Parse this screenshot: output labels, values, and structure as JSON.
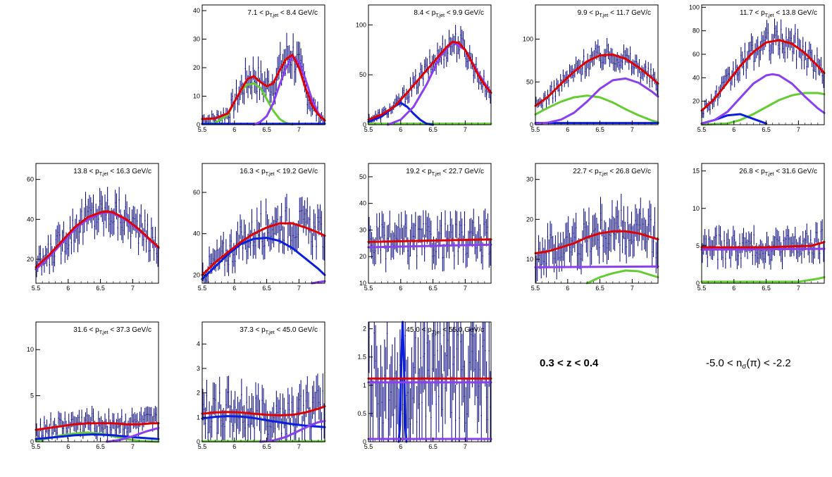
{
  "labels": {
    "z_range": "0.3 < z < 0.4",
    "nsigma_pre": "-5.0 < n",
    "nsigma_sub": "σ",
    "nsigma_post": "(π) < -2.2"
  },
  "colors": {
    "data": "#000080",
    "total": "#e00000",
    "pion": "#8a3ff0",
    "kaon": "#0a1ee0",
    "proton": "#66cc33"
  },
  "chart_data": [
    {
      "type": "scatter",
      "title_pre": "7.1 < p",
      "title_sub": "T,jet",
      "title_post": " < 8.4 GeV/c",
      "xlim": [
        5.5,
        7.4
      ],
      "ylim": [
        0,
        42
      ],
      "xticks": [
        "5.5",
        "6",
        "6.5",
        "7"
      ],
      "yticks": [
        0,
        10,
        20,
        30,
        40
      ],
      "series": [
        {
          "key": "total",
          "x": [
            5.5,
            5.7,
            5.9,
            6.1,
            6.2,
            6.3,
            6.4,
            6.5,
            6.6,
            6.7,
            6.8,
            6.9,
            7.0,
            7.1,
            7.2,
            7.3,
            7.4
          ],
          "y": [
            2,
            2.2,
            4,
            12,
            16,
            17,
            15,
            13.5,
            14.5,
            19,
            23,
            24.5,
            20,
            13,
            7,
            3.5,
            1.5
          ]
        },
        {
          "key": "proton",
          "x": [
            5.5,
            5.7,
            5.9,
            6.0,
            6.1,
            6.2,
            6.3,
            6.4,
            6.5,
            6.6,
            6.7,
            6.8,
            6.9
          ],
          "y": [
            0.2,
            0.6,
            3.5,
            8,
            12,
            14,
            14.5,
            13,
            9,
            5,
            2,
            0.6,
            0.1
          ]
        },
        {
          "key": "pion",
          "x": [
            6.3,
            6.4,
            6.5,
            6.6,
            6.7,
            6.8,
            6.9,
            7.0,
            7.1,
            7.2,
            7.3,
            7.4
          ],
          "y": [
            0,
            1,
            3,
            7.5,
            14,
            20,
            24,
            22,
            16,
            9,
            4,
            1.5
          ]
        },
        {
          "key": "kaon",
          "x": [
            5.5,
            7.4
          ],
          "y": [
            0.3,
            0.3
          ]
        }
      ]
    },
    {
      "type": "scatter",
      "title_pre": "8.4 < p",
      "title_sub": "T,jet",
      "title_post": " < 9.9 GeV/c",
      "xlim": [
        5.5,
        7.4
      ],
      "ylim": [
        0,
        120
      ],
      "xticks": [
        "5.5",
        "6",
        "6.5",
        "7"
      ],
      "yticks": [
        0,
        50,
        100
      ],
      "series": [
        {
          "key": "total",
          "x": [
            5.5,
            5.7,
            5.9,
            6.1,
            6.3,
            6.5,
            6.7,
            6.8,
            6.9,
            7.0,
            7.1,
            7.2,
            7.3,
            7.4
          ],
          "y": [
            5,
            10,
            18,
            32,
            47,
            62,
            77,
            83,
            82,
            75,
            63,
            50,
            40,
            32
          ]
        },
        {
          "key": "pion",
          "x": [
            5.8,
            6.0,
            6.2,
            6.4,
            6.6,
            6.8,
            7.0,
            7.2,
            7.4
          ],
          "y": [
            0,
            5,
            18,
            40,
            67,
            83,
            75,
            52,
            32
          ]
        },
        {
          "key": "kaon",
          "x": [
            5.5,
            5.7,
            5.8,
            5.9,
            6.0,
            6.1,
            6.2,
            6.3,
            6.4,
            6.5
          ],
          "y": [
            3,
            8,
            13,
            18,
            22,
            18,
            11,
            5,
            1,
            0
          ]
        },
        {
          "key": "proton",
          "x": [
            5.5,
            7.4
          ],
          "y": [
            1,
            1
          ]
        }
      ]
    },
    {
      "type": "scatter",
      "title_pre": "9.9 < p",
      "title_sub": "T,jet",
      "title_post": " < 11.7 GeV/c",
      "xlim": [
        5.5,
        7.4
      ],
      "ylim": [
        0,
        140
      ],
      "xticks": [
        "5.5",
        "6",
        "6.5",
        "7"
      ],
      "yticks": [
        0,
        50,
        100
      ],
      "series": [
        {
          "key": "total",
          "x": [
            5.5,
            5.7,
            5.9,
            6.1,
            6.3,
            6.5,
            6.7,
            6.9,
            7.1,
            7.3,
            7.4
          ],
          "y": [
            22,
            33,
            48,
            62,
            74,
            81,
            82,
            77,
            67,
            55,
            48
          ]
        },
        {
          "key": "pion",
          "x": [
            5.5,
            5.7,
            5.9,
            6.1,
            6.3,
            6.5,
            6.7,
            6.9,
            7.1,
            7.3,
            7.4
          ],
          "y": [
            1,
            2.5,
            6,
            14,
            27,
            42,
            52,
            54,
            49,
            39,
            33
          ]
        },
        {
          "key": "proton",
          "x": [
            5.5,
            5.7,
            5.9,
            6.1,
            6.3,
            6.5,
            6.7,
            6.9,
            7.1,
            7.3,
            7.4
          ],
          "y": [
            12,
            20,
            27,
            32,
            34,
            32,
            26,
            18,
            11,
            5,
            3
          ]
        },
        {
          "key": "kaon",
          "x": [
            5.5,
            7.4
          ],
          "y": [
            2,
            2
          ]
        }
      ]
    },
    {
      "type": "scatter",
      "title_pre": "11.7 < p",
      "title_sub": "T,jet",
      "title_post": " < 13.8 GeV/c",
      "xlim": [
        5.5,
        7.4
      ],
      "ylim": [
        0,
        102
      ],
      "xticks": [
        "5.5",
        "6",
        "6.5",
        "7"
      ],
      "yticks": [
        20,
        40,
        60,
        80,
        100
      ],
      "series": [
        {
          "key": "total",
          "x": [
            5.5,
            5.7,
            5.9,
            6.1,
            6.3,
            6.5,
            6.7,
            6.9,
            7.1,
            7.3,
            7.4
          ],
          "y": [
            12,
            22,
            36,
            50,
            62,
            70,
            72,
            69,
            61,
            50,
            44
          ]
        },
        {
          "key": "pion",
          "x": [
            5.5,
            5.7,
            5.9,
            6.1,
            6.3,
            6.5,
            6.6,
            6.7,
            6.9,
            7.1,
            7.3,
            7.4
          ],
          "y": [
            1,
            4,
            11,
            23,
            35,
            42,
            43,
            42,
            35,
            24,
            14,
            10
          ]
        },
        {
          "key": "proton",
          "x": [
            5.5,
            5.9,
            6.1,
            6.3,
            6.5,
            6.7,
            6.9,
            7.1,
            7.3,
            7.4
          ],
          "y": [
            0,
            1,
            4,
            9,
            15,
            21,
            25,
            27,
            27,
            26
          ]
        },
        {
          "key": "kaon",
          "x": [
            5.5,
            5.7,
            5.9,
            6.1,
            6.3,
            6.5
          ],
          "y": [
            1,
            4,
            8,
            9,
            5,
            1
          ]
        }
      ]
    },
    {
      "type": "scatter",
      "title_pre": "13.8 < p",
      "title_sub": "T,jet",
      "title_post": " < 16.3 GeV/c",
      "xlim": [
        5.5,
        7.4
      ],
      "ylim": [
        8,
        68
      ],
      "xticks": [
        "5.5",
        "6",
        "6.5",
        "7"
      ],
      "yticks": [
        20,
        40,
        60
      ],
      "series": [
        {
          "key": "total",
          "x": [
            5.5,
            5.7,
            5.9,
            6.1,
            6.3,
            6.5,
            6.6,
            6.7,
            6.9,
            7.1,
            7.3,
            7.4
          ],
          "y": [
            16,
            22,
            29,
            36,
            41,
            43.5,
            44,
            43.5,
            40,
            35,
            29,
            26
          ]
        },
        {
          "key": "pion",
          "x": [
            5.5,
            5.7,
            5.9,
            6.1,
            6.3,
            6.5,
            6.6,
            6.7,
            6.9,
            7.1,
            7.3,
            7.4
          ],
          "y": [
            15,
            21,
            28,
            35,
            40,
            43,
            43.5,
            43,
            39.5,
            34.5,
            28.5,
            25.5
          ]
        }
      ]
    },
    {
      "type": "scatter",
      "title_pre": "16.3 < p",
      "title_sub": "T,jet",
      "title_post": " < 19.2 GeV/c",
      "xlim": [
        5.5,
        7.4
      ],
      "ylim": [
        16,
        74
      ],
      "xticks": [
        "5.5",
        "6",
        "6.5",
        "7"
      ],
      "yticks": [
        20,
        40,
        60
      ],
      "series": [
        {
          "key": "total",
          "x": [
            5.5,
            5.7,
            5.9,
            6.1,
            6.3,
            6.5,
            6.7,
            6.9,
            7.1,
            7.3,
            7.4
          ],
          "y": [
            20,
            26,
            31,
            36,
            40,
            43,
            45,
            45,
            43,
            40.5,
            39
          ]
        },
        {
          "key": "kaon",
          "x": [
            5.5,
            5.7,
            5.9,
            6.1,
            6.3,
            6.5,
            6.7,
            6.9,
            7.1,
            7.3,
            7.4
          ],
          "y": [
            18,
            24,
            30,
            35,
            37.5,
            38,
            36.5,
            33,
            28,
            23,
            20
          ]
        },
        {
          "key": "pion",
          "x": [
            7.2,
            7.3,
            7.4
          ],
          "y": [
            16,
            16.5,
            17
          ]
        }
      ]
    },
    {
      "type": "scatter",
      "title_pre": "19.2 < p",
      "title_sub": "T,jet",
      "title_post": " < 22.7 GeV/c",
      "xlim": [
        5.5,
        7.4
      ],
      "ylim": [
        10,
        55
      ],
      "xticks": [
        "5.5",
        "6",
        "6.5",
        "7"
      ],
      "yticks": [
        10,
        20,
        30,
        40,
        50
      ],
      "series": [
        {
          "key": "total",
          "x": [
            5.5,
            7.4
          ],
          "y": [
            25.5,
            26.5
          ]
        },
        {
          "key": "pion",
          "x": [
            5.5,
            7.4
          ],
          "y": [
            23.5,
            24.5
          ]
        }
      ]
    },
    {
      "type": "scatter",
      "title_pre": "22.7 < p",
      "title_sub": "T,jet",
      "title_post": " < 26.8 GeV/c",
      "xlim": [
        5.5,
        7.4
      ],
      "ylim": [
        4,
        34
      ],
      "xticks": [
        "5.5",
        "6",
        "6.5",
        "7"
      ],
      "yticks": [
        10,
        20,
        30
      ],
      "series": [
        {
          "key": "total",
          "x": [
            5.5,
            5.7,
            5.9,
            6.1,
            6.3,
            6.5,
            6.7,
            6.9,
            7.1,
            7.3,
            7.4
          ],
          "y": [
            11.5,
            12,
            13,
            14,
            15.5,
            16.5,
            17,
            17,
            16.5,
            15.5,
            15
          ]
        },
        {
          "key": "pion",
          "x": [
            5.5,
            7.4
          ],
          "y": [
            8,
            8.2
          ]
        },
        {
          "key": "proton",
          "x": [
            6.3,
            6.5,
            6.7,
            6.9,
            7.1,
            7.3,
            7.4
          ],
          "y": [
            4,
            5.5,
            6.5,
            7.2,
            7,
            6,
            5.5
          ]
        }
      ]
    },
    {
      "type": "scatter",
      "title_pre": "26.8 < p",
      "title_sub": "T,jet",
      "title_post": " < 31.6 GeV/c",
      "xlim": [
        5.5,
        7.4
      ],
      "ylim": [
        0,
        16
      ],
      "xticks": [
        "5.5",
        "6",
        "6.5",
        "7"
      ],
      "yticks": [
        0,
        5,
        10,
        15
      ],
      "series": [
        {
          "key": "total",
          "x": [
            5.5,
            6.5,
            7.2,
            7.4
          ],
          "y": [
            4.8,
            4.8,
            5,
            5.5
          ]
        },
        {
          "key": "pion",
          "x": [
            5.5,
            7.4
          ],
          "y": [
            4.5,
            4.6
          ]
        },
        {
          "key": "proton",
          "x": [
            5.5,
            7.0,
            7.3,
            7.4
          ],
          "y": [
            0.2,
            0.2,
            0.6,
            0.8
          ]
        }
      ]
    },
    {
      "type": "scatter",
      "title_pre": "31.6 < p",
      "title_sub": "T,jet",
      "title_post": " < 37.3 GeV/c",
      "xlim": [
        5.5,
        7.4
      ],
      "ylim": [
        0,
        13
      ],
      "xticks": [
        "5.5",
        "6",
        "6.5",
        "7"
      ],
      "yticks": [
        0,
        5,
        10
      ],
      "series": [
        {
          "key": "total",
          "x": [
            5.5,
            5.7,
            5.9,
            6.1,
            6.3,
            6.5,
            6.7,
            6.9,
            7.1,
            7.3,
            7.4
          ],
          "y": [
            1.3,
            1.5,
            1.7,
            1.9,
            2,
            2,
            2,
            1.9,
            1.9,
            2,
            2
          ]
        },
        {
          "key": "proton",
          "x": [
            5.5,
            5.7,
            5.9,
            6.1,
            6.3,
            6.5,
            6.7,
            6.9,
            7.1,
            7.4
          ],
          "y": [
            0.1,
            0.4,
            0.7,
            0.9,
            1,
            0.9,
            0.6,
            0.3,
            0.1,
            0
          ]
        },
        {
          "key": "kaon",
          "x": [
            5.5,
            5.8,
            6.1,
            6.4,
            6.7,
            7.0,
            7.4
          ],
          "y": [
            0.3,
            0.5,
            0.7,
            0.8,
            0.7,
            0.5,
            0.3
          ]
        },
        {
          "key": "pion",
          "x": [
            6.6,
            6.8,
            7.0,
            7.2,
            7.4
          ],
          "y": [
            0,
            0.2,
            0.6,
            1.1,
            1.5
          ]
        }
      ]
    },
    {
      "type": "scatter",
      "title_pre": "37.3 < p",
      "title_sub": "T,jet",
      "title_post": " < 45.0 GeV/c",
      "xlim": [
        5.5,
        7.4
      ],
      "ylim": [
        0,
        4.9
      ],
      "xticks": [
        "5.5",
        "6",
        "6.5",
        "7"
      ],
      "yticks": [
        0,
        1,
        2,
        3,
        4
      ],
      "series": [
        {
          "key": "total",
          "x": [
            5.5,
            5.7,
            5.9,
            6.1,
            6.3,
            6.5,
            6.7,
            6.9,
            7.1,
            7.3,
            7.4
          ],
          "y": [
            1.15,
            1.2,
            1.22,
            1.2,
            1.15,
            1.1,
            1.08,
            1.1,
            1.2,
            1.35,
            1.45
          ]
        },
        {
          "key": "kaon",
          "x": [
            5.5,
            5.7,
            5.9,
            6.1,
            6.3,
            6.5,
            6.7,
            6.9,
            7.1,
            7.3,
            7.4
          ],
          "y": [
            0.95,
            1.02,
            1.05,
            1.03,
            0.97,
            0.88,
            0.8,
            0.72,
            0.66,
            0.62,
            0.6
          ]
        },
        {
          "key": "pion",
          "x": [
            6.4,
            6.6,
            6.8,
            7.0,
            7.2,
            7.3,
            7.4
          ],
          "y": [
            0,
            0.05,
            0.2,
            0.45,
            0.7,
            0.8,
            0.85
          ]
        },
        {
          "key": "proton",
          "x": [
            5.5,
            7.4
          ],
          "y": [
            0.02,
            0.02
          ]
        }
      ]
    },
    {
      "type": "scatter",
      "title_pre": "45.0 < p",
      "title_sub": "T,jet",
      "title_post": " < 55.0 GeV/c",
      "xlim": [
        5.5,
        7.4
      ],
      "ylim": [
        0,
        2.12
      ],
      "xticks": [
        "5.5",
        "6",
        "6.5",
        "7"
      ],
      "yticks": [
        0,
        0.5,
        1,
        1.5,
        2
      ],
      "series": [
        {
          "key": "total",
          "x": [
            5.5,
            7.4
          ],
          "y": [
            1.12,
            1.12
          ]
        },
        {
          "key": "pion",
          "x": [
            5.5,
            7.4
          ],
          "y": [
            1.05,
            1.05
          ]
        },
        {
          "key": "pion",
          "x": [
            5.5,
            7.4
          ],
          "y": [
            0.05,
            0.05
          ]
        },
        {
          "key": "kaon",
          "x": [
            5.97,
            5.99,
            6.01,
            6.03,
            6.05,
            6.07,
            6.09
          ],
          "y": [
            0,
            0.3,
            1.4,
            2.12,
            1.4,
            0.3,
            0
          ]
        }
      ]
    }
  ]
}
